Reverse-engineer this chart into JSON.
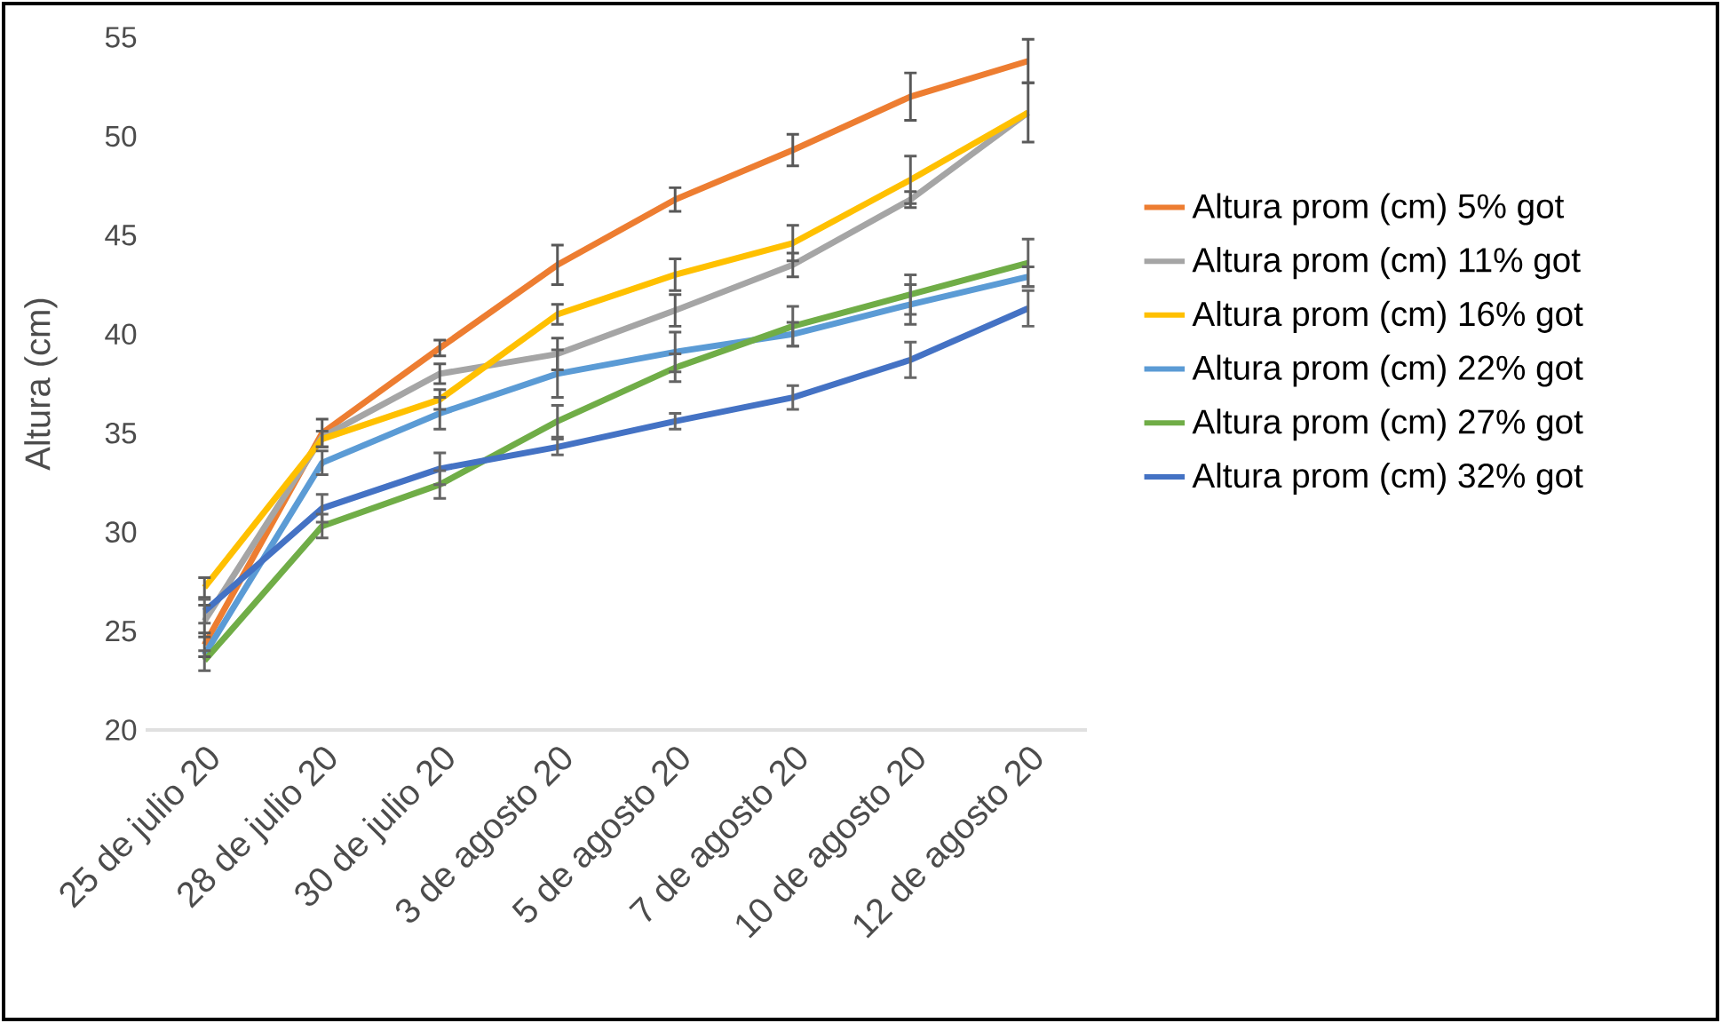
{
  "chart_data": {
    "type": "line",
    "ylabel": "Altura (cm)",
    "categories": [
      "25 de julio 20",
      "28 de julio 20",
      "30 de julio 20",
      "3 de agosto 20",
      "5 de agosto 20",
      "7 de agosto 20",
      "10 de agosto 20",
      "12 de agosto 20"
    ],
    "series": [
      {
        "name": "Altura prom (cm) 5% got",
        "color": "#ed7d31",
        "values": [
          24.3,
          35.0,
          39.3,
          43.5,
          46.8,
          49.3,
          52.0,
          53.8
        ],
        "errors": [
          0.6,
          0.7,
          0.4,
          1.0,
          0.6,
          0.8,
          1.2,
          1.1
        ]
      },
      {
        "name": "Altura prom (cm) 11% got",
        "color": "#a5a5a5",
        "values": [
          25.5,
          34.8,
          38.0,
          39.0,
          41.2,
          43.5,
          46.8,
          51.2
        ],
        "errors": [
          0.8,
          null,
          0.5,
          0.8,
          0.8,
          0.6,
          0.4,
          1.5
        ]
      },
      {
        "name": "Altura prom (cm) 16% got",
        "color": "#ffc000",
        "values": [
          27.2,
          34.7,
          36.7,
          41.0,
          43.0,
          44.6,
          47.8,
          51.2
        ],
        "errors": [
          0.5,
          0.4,
          0.5,
          0.5,
          0.8,
          0.9,
          1.2,
          null
        ]
      },
      {
        "name": "Altura prom (cm) 22% got",
        "color": "#5b9bd5",
        "values": [
          23.8,
          33.5,
          36.0,
          38.0,
          39.1,
          40.0,
          41.5,
          42.9
        ],
        "errors": [
          null,
          0.6,
          0.8,
          1.2,
          1.0,
          0.6,
          1.0,
          0.5
        ]
      },
      {
        "name": "Altura prom (cm) 27% got",
        "color": "#70ad47",
        "values": [
          23.5,
          30.3,
          32.4,
          35.6,
          38.3,
          40.4,
          42.0,
          43.6
        ],
        "errors": [
          0.5,
          0.6,
          0.7,
          0.8,
          0.7,
          1.0,
          1.0,
          1.2
        ]
      },
      {
        "name": "Altura prom (cm) 32% got",
        "color": "#4472c4",
        "values": [
          26.0,
          31.2,
          33.2,
          34.3,
          35.6,
          36.8,
          38.7,
          41.3
        ],
        "errors": [
          0.6,
          0.7,
          0.8,
          0.4,
          0.4,
          0.6,
          0.9,
          0.9
        ]
      }
    ],
    "ylim": [
      20,
      55
    ],
    "yticks": [
      20,
      25,
      30,
      35,
      40,
      45,
      50,
      55
    ],
    "legend": "right"
  }
}
